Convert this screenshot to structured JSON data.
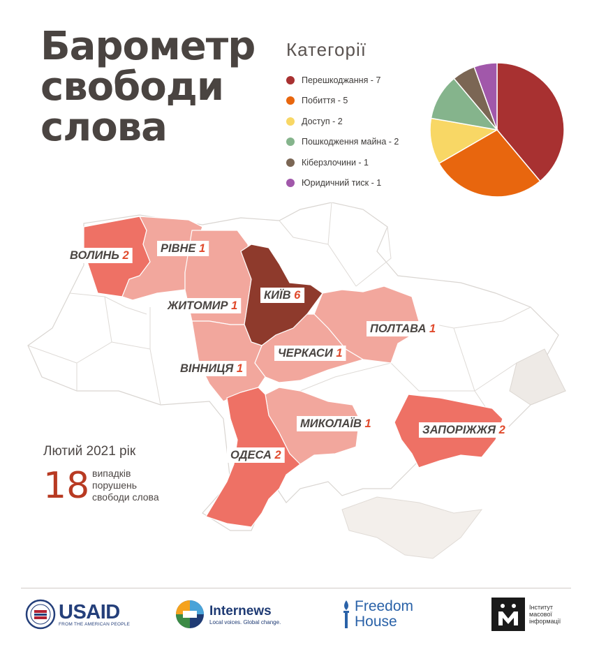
{
  "title_lines": [
    "Барометр",
    "свободи",
    "слова"
  ],
  "chart_data": [
    {
      "type": "pie",
      "title": "Категорії",
      "slices": [
        {
          "label": "Перешкоджання",
          "value": 7,
          "color": "#a83131"
        },
        {
          "label": "Побиття",
          "value": 5,
          "color": "#e8660e"
        },
        {
          "label": "Доступ",
          "value": 2,
          "color": "#f8d765"
        },
        {
          "label": "Пошкодження майна",
          "value": 2,
          "color": "#85b48c"
        },
        {
          "label": "Кіберзлочини",
          "value": 1,
          "color": "#7b6654"
        },
        {
          "label": "Юридичний тиск",
          "value": 1,
          "color": "#a158aa"
        }
      ]
    },
    {
      "type": "choropleth",
      "regions": [
        {
          "name": "ВОЛИНЬ",
          "value": 2
        },
        {
          "name": "РІВНЕ",
          "value": 1
        },
        {
          "name": "ЖИТОМИР",
          "value": 1
        },
        {
          "name": "КИЇВ",
          "value": 6
        },
        {
          "name": "ПОЛТАВА",
          "value": 1
        },
        {
          "name": "ЧЕРКАСИ",
          "value": 1
        },
        {
          "name": "ВІННИЦЯ",
          "value": 1
        },
        {
          "name": "МИКОЛАЇВ",
          "value": 1
        },
        {
          "name": "ЗАПОРІЖЖЯ",
          "value": 2
        },
        {
          "name": "ОДЕСА",
          "value": 2
        }
      ],
      "colors": {
        "1": "#f2a79d",
        "2": "#ee7165",
        "6": "#8e3a2c",
        "none": "#ffffff",
        "occupied": "#ebe6e2",
        "label_value": "#e0492b",
        "label_name": "#4a4542"
      }
    }
  ],
  "stats": {
    "period": "Лютий 2021 рік",
    "count": "18",
    "desc_lines": [
      "випадків",
      "порушень",
      "свободи слова"
    ]
  },
  "logos": {
    "usaid": {
      "name": "USAID",
      "tagline": "FROM THE AMERICAN PEOPLE"
    },
    "internews": {
      "name": "Internews",
      "tagline": "Local voices. Global change."
    },
    "freedom_house": {
      "line1": "Freedom",
      "line2": "House"
    },
    "imi": {
      "lines": [
        "Інститут",
        "масової",
        "інформації"
      ]
    }
  }
}
